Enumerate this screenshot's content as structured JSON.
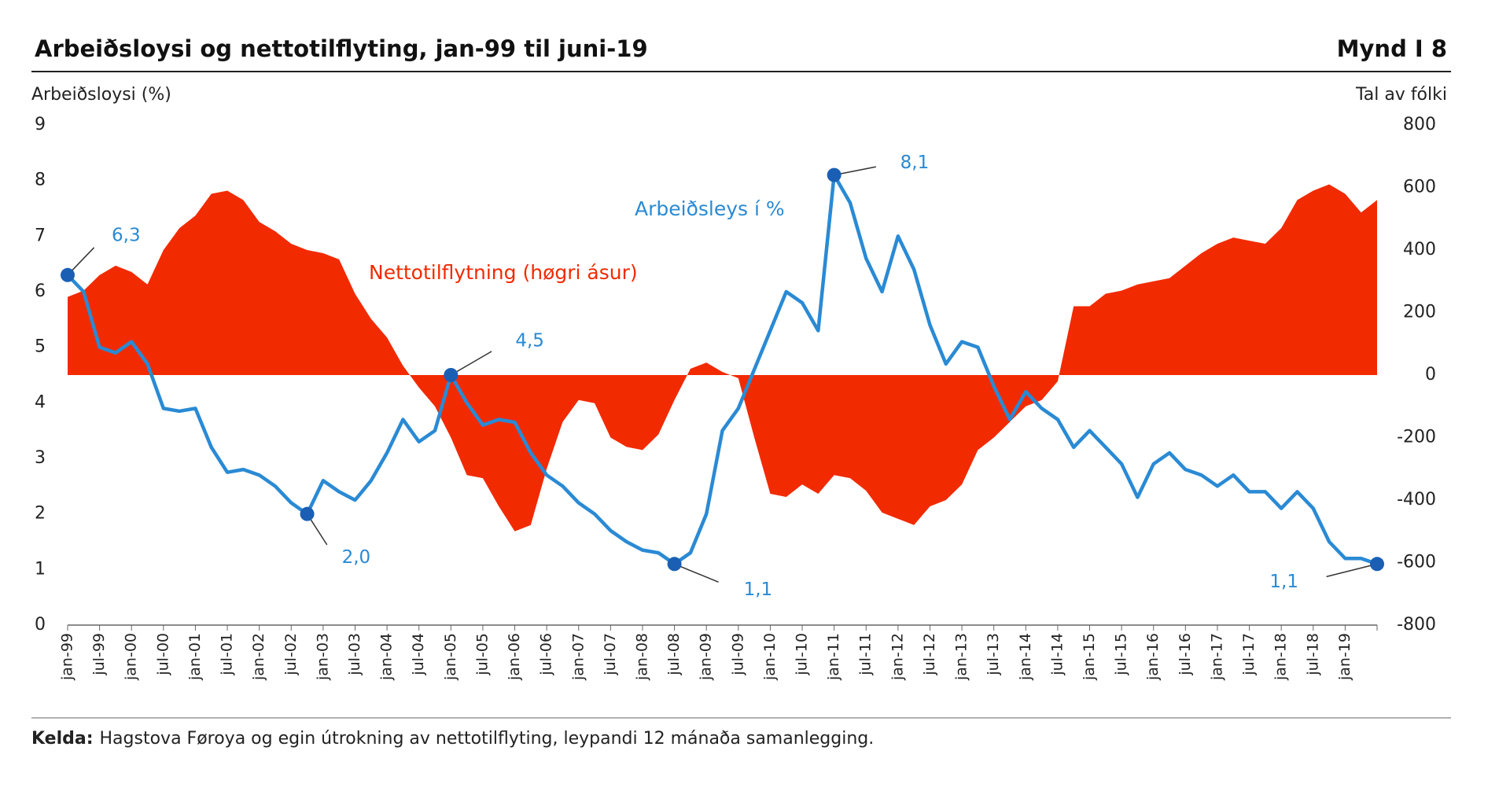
{
  "chart_data": {
    "type": "line-area",
    "title": "Arbeiðsloysi og nettotilflyting, jan-99 til juni-19",
    "figure_label": "Mynd I 8",
    "y_label": "Arbeiðsloysi (%)",
    "y2_label": "Tal av fólki",
    "source": {
      "label": "Kelda:",
      "text": "Hagstova Føroya og egin útrokning av nettotilflyting, leypandi 12 mánaða samanlegging."
    },
    "categories": [
      "jan-99",
      null,
      "jul-99",
      null,
      "jan-00",
      null,
      "jul-00",
      null,
      "jan-01",
      null,
      "jul-01",
      null,
      "jan-02",
      null,
      "jul-02",
      null,
      "jan-03",
      null,
      "jul-03",
      null,
      "jan-04",
      null,
      "jul-04",
      null,
      "jan-05",
      null,
      "jul-05",
      null,
      "jan-06",
      null,
      "jul-06",
      null,
      "jan-07",
      null,
      "jul-07",
      null,
      "jan-08",
      null,
      "jul-08",
      null,
      "jan-09",
      null,
      "jul-09",
      null,
      "jan-10",
      null,
      "jul-10",
      null,
      "jan-11",
      null,
      "jul-11",
      null,
      "jan-12",
      null,
      "jul-12",
      null,
      "jan-13",
      null,
      "jul-13",
      null,
      "jan-14",
      null,
      "jul-14",
      null,
      "jan-15",
      null,
      "jul-15",
      null,
      "jan-16",
      null,
      "jul-16",
      null,
      "jan-17",
      null,
      "jul-17",
      null,
      "jan-18",
      null,
      "jul-18",
      null,
      "jan-19",
      null,
      null
    ],
    "series": [
      {
        "name": "Arbeiðsleys í %",
        "color": "#2a8ad4",
        "marker_color": "#1a5fb4",
        "values": [
          6.3,
          6.0,
          5.0,
          4.9,
          5.1,
          4.7,
          3.9,
          3.85,
          3.9,
          3.2,
          2.75,
          2.8,
          2.7,
          2.5,
          2.2,
          2.0,
          2.6,
          2.4,
          2.25,
          2.6,
          3.1,
          3.7,
          3.3,
          3.5,
          4.5,
          4.0,
          3.6,
          3.7,
          3.65,
          3.1,
          2.7,
          2.5,
          2.2,
          2.0,
          1.7,
          1.5,
          1.35,
          1.3,
          1.1,
          1.3,
          2.0,
          3.5,
          3.9,
          4.6,
          5.3,
          6.0,
          5.8,
          5.3,
          8.1,
          7.6,
          6.6,
          6.0,
          7.0,
          6.4,
          5.4,
          4.7,
          5.1,
          5.0,
          4.3,
          3.7,
          4.2,
          3.9,
          3.7,
          3.2,
          3.5,
          3.2,
          2.9,
          2.3,
          2.9,
          3.1,
          2.8,
          2.7,
          2.5,
          2.7,
          2.4,
          2.4,
          2.1,
          2.4,
          2.1,
          1.5,
          1.2,
          1.2,
          1.1
        ],
        "value_labels": [
          "6,3",
          null,
          null,
          null,
          null,
          null,
          null,
          null,
          null,
          null,
          null,
          null,
          null,
          null,
          null,
          "2,0",
          null,
          null,
          null,
          null,
          null,
          null,
          null,
          null,
          "4,5",
          null,
          null,
          null,
          null,
          null,
          null,
          null,
          null,
          null,
          null,
          null,
          null,
          null,
          "1,1",
          null,
          null,
          null,
          null,
          null,
          null,
          null,
          null,
          null,
          "8,1",
          null,
          null,
          null,
          null,
          null,
          null,
          null,
          null,
          null,
          null,
          null,
          null,
          null,
          null,
          null,
          null,
          null,
          null,
          null,
          null,
          null,
          null,
          null,
          null,
          null,
          null,
          null,
          null,
          null,
          null,
          null,
          null,
          null,
          "1,1"
        ]
      },
      {
        "name": "Nettotilflytning (høgri ásur)",
        "color": "#f22a00",
        "axis": "y2",
        "values": [
          250,
          270,
          320,
          350,
          330,
          290,
          400,
          470,
          510,
          580,
          590,
          560,
          490,
          460,
          420,
          400,
          390,
          370,
          260,
          180,
          120,
          30,
          -40,
          -100,
          -200,
          -320,
          -330,
          -420,
          -500,
          -480,
          -300,
          -150,
          -80,
          -90,
          -200,
          -230,
          -240,
          -190,
          -80,
          20,
          40,
          10,
          -10,
          -200,
          -380,
          -390,
          -350,
          -380,
          -320,
          -330,
          -370,
          -440,
          -460,
          -480,
          -420,
          -400,
          -350,
          -240,
          -200,
          -150,
          -100,
          -80,
          -20,
          220,
          220,
          260,
          270,
          290,
          300,
          310,
          350,
          390,
          420,
          440,
          430,
          420,
          470,
          560,
          590,
          610,
          580,
          520,
          560
        ]
      }
    ],
    "ylim": [
      0,
      9
    ],
    "yticks": [
      0,
      1,
      2,
      3,
      4,
      5,
      6,
      7,
      8,
      9
    ],
    "y2lim": [
      -800,
      800
    ],
    "y2ticks": [
      -800,
      -600,
      -400,
      -200,
      0,
      200,
      400,
      600,
      800
    ],
    "grid": false
  }
}
